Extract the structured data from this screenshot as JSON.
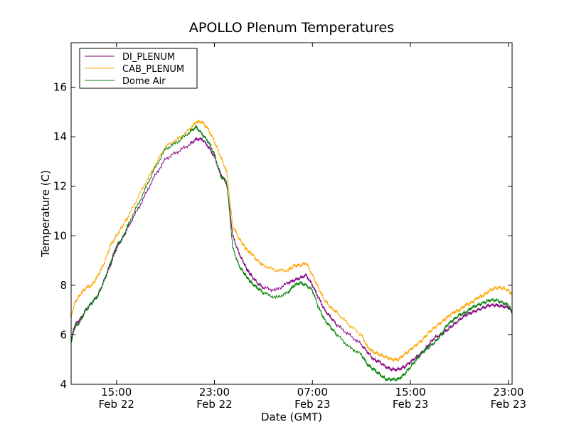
{
  "chart_data": {
    "type": "line",
    "title": "APOLLO Plenum Temperatures",
    "xlabel": "Date (GMT)",
    "ylabel": "Temperature (C)",
    "x_unit": "hours since Feb 22 00:00 GMT",
    "xlim": [
      11.3,
      47.3
    ],
    "ylim": [
      4,
      17.8
    ],
    "grid": false,
    "legend_position": "top-left",
    "y_ticks": [
      4,
      6,
      8,
      10,
      12,
      14,
      16
    ],
    "x_ticks": [
      {
        "x": 15,
        "time": "15:00",
        "date": "Feb 22"
      },
      {
        "x": 23,
        "time": "23:00",
        "date": "Feb 22"
      },
      {
        "x": 31,
        "time": "07:00",
        "date": "Feb 23"
      },
      {
        "x": 39,
        "time": "15:00",
        "date": "Feb 23"
      },
      {
        "x": 47,
        "time": "23:00",
        "date": "Feb 23"
      }
    ],
    "series": [
      {
        "name": "DI_PLENUM",
        "color": "#800080",
        "x": [
          11.3,
          11.6,
          12.0,
          12.5,
          13.0,
          13.5,
          14.0,
          14.5,
          15.0,
          15.5,
          16.0,
          17.0,
          18.0,
          19.0,
          20.0,
          21.0,
          21.5,
          22.0,
          22.5,
          23.0,
          23.5,
          24.0,
          24.5,
          25.0,
          25.4,
          25.7,
          26.0,
          26.5,
          27.0,
          28.0,
          29.0,
          29.5,
          30.0,
          30.5,
          31.0,
          31.5,
          32.0,
          32.5,
          33.0,
          34.0,
          35.0,
          35.5,
          36.0,
          36.5,
          37.0,
          37.5,
          38.0,
          38.5,
          39.0,
          39.5,
          40.0,
          40.5,
          41.0,
          41.5,
          42.0,
          42.5,
          43.0,
          43.5,
          44.0,
          44.5,
          45.0,
          45.5,
          46.0,
          46.5,
          47.0,
          47.3
        ],
        "values": [
          5.8,
          6.4,
          6.6,
          7.0,
          7.3,
          7.6,
          8.2,
          8.8,
          9.5,
          9.9,
          10.4,
          11.3,
          12.3,
          13.1,
          13.4,
          13.7,
          13.9,
          13.9,
          13.6,
          13.2,
          12.5,
          12.1,
          10.0,
          9.3,
          8.9,
          8.6,
          8.4,
          8.1,
          7.9,
          7.8,
          8.1,
          8.2,
          8.3,
          8.4,
          8.0,
          7.5,
          7.0,
          6.7,
          6.4,
          6.0,
          5.6,
          5.3,
          5.0,
          4.9,
          4.7,
          4.6,
          4.6,
          4.7,
          4.9,
          5.1,
          5.3,
          5.6,
          5.9,
          6.0,
          6.2,
          6.4,
          6.6,
          6.8,
          6.9,
          7.0,
          7.1,
          7.2,
          7.2,
          7.15,
          7.1,
          6.95
        ]
      },
      {
        "name": "CAB_PLENUM",
        "color": "#ffa500",
        "x": [
          11.3,
          11.6,
          12.0,
          12.5,
          13.0,
          13.5,
          14.0,
          14.5,
          15.0,
          15.5,
          16.0,
          17.0,
          18.0,
          19.0,
          20.0,
          21.0,
          21.5,
          22.0,
          22.5,
          23.0,
          23.5,
          24.0,
          24.5,
          25.0,
          25.4,
          25.7,
          26.0,
          26.5,
          27.0,
          28.0,
          29.0,
          29.5,
          30.0,
          30.5,
          31.0,
          31.5,
          32.0,
          32.5,
          33.0,
          34.0,
          35.0,
          35.5,
          36.0,
          36.5,
          37.0,
          37.5,
          38.0,
          38.5,
          39.0,
          39.5,
          40.0,
          40.5,
          41.0,
          41.5,
          42.0,
          42.5,
          43.0,
          43.5,
          44.0,
          44.5,
          45.0,
          45.5,
          46.0,
          46.5,
          47.0,
          47.3
        ],
        "values": [
          6.7,
          7.3,
          7.6,
          7.9,
          8.0,
          8.4,
          8.9,
          9.6,
          10.0,
          10.4,
          10.8,
          11.8,
          12.7,
          13.6,
          13.9,
          14.3,
          14.6,
          14.6,
          14.3,
          13.8,
          13.2,
          12.6,
          10.4,
          9.9,
          9.6,
          9.4,
          9.3,
          9.0,
          8.8,
          8.6,
          8.6,
          8.8,
          8.8,
          8.9,
          8.4,
          7.9,
          7.4,
          7.1,
          6.9,
          6.4,
          6.0,
          5.5,
          5.3,
          5.2,
          5.1,
          5.0,
          5.0,
          5.2,
          5.4,
          5.6,
          5.8,
          6.1,
          6.3,
          6.5,
          6.7,
          6.9,
          7.0,
          7.2,
          7.3,
          7.5,
          7.6,
          7.8,
          7.9,
          7.9,
          7.8,
          7.6
        ]
      },
      {
        "name": "Dome Air",
        "color": "#008000",
        "x": [
          11.3,
          11.6,
          12.0,
          12.5,
          13.0,
          13.5,
          14.0,
          14.5,
          15.0,
          15.5,
          16.0,
          17.0,
          18.0,
          19.0,
          20.0,
          21.0,
          21.5,
          22.0,
          22.5,
          23.0,
          23.5,
          24.0,
          24.5,
          25.0,
          25.4,
          25.7,
          26.0,
          26.5,
          27.0,
          28.0,
          29.0,
          29.5,
          30.0,
          30.5,
          31.0,
          31.5,
          32.0,
          32.5,
          33.0,
          34.0,
          35.0,
          35.5,
          36.0,
          36.5,
          37.0,
          37.5,
          38.0,
          38.5,
          39.0,
          39.5,
          40.0,
          40.5,
          41.0,
          41.5,
          42.0,
          42.5,
          43.0,
          43.5,
          44.0,
          44.5,
          45.0,
          45.5,
          46.0,
          46.5,
          47.0,
          47.3
        ],
        "values": [
          5.7,
          6.3,
          6.5,
          7.0,
          7.3,
          7.6,
          8.2,
          8.9,
          9.6,
          9.9,
          10.5,
          11.5,
          12.6,
          13.5,
          13.8,
          14.2,
          14.4,
          14.1,
          13.8,
          13.3,
          12.4,
          12.2,
          9.5,
          8.8,
          8.5,
          8.3,
          8.1,
          7.9,
          7.7,
          7.5,
          7.7,
          8.0,
          8.1,
          8.0,
          7.8,
          7.1,
          6.6,
          6.3,
          6.0,
          5.5,
          5.2,
          4.8,
          4.6,
          4.4,
          4.2,
          4.2,
          4.2,
          4.4,
          4.7,
          5.0,
          5.3,
          5.5,
          5.7,
          6.0,
          6.4,
          6.6,
          6.8,
          6.9,
          7.1,
          7.2,
          7.3,
          7.4,
          7.4,
          7.3,
          7.2,
          6.9
        ]
      }
    ]
  }
}
